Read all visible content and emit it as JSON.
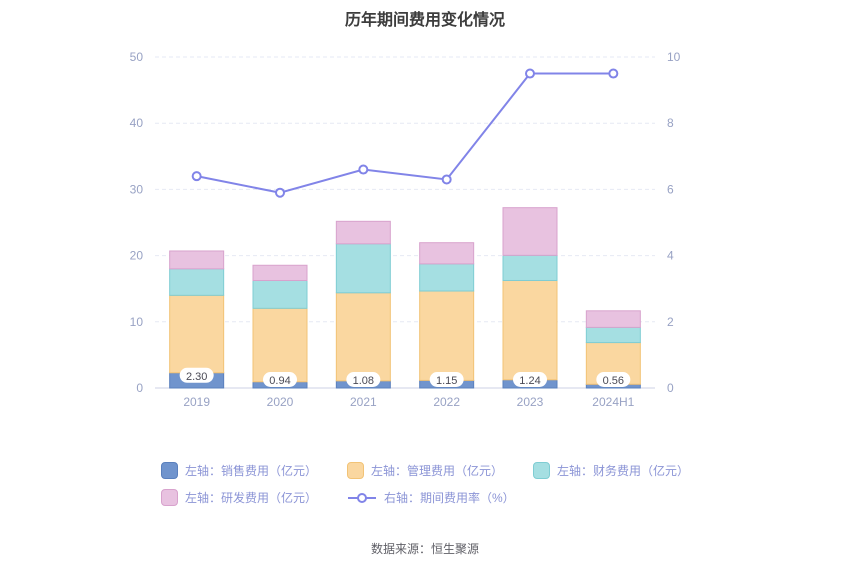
{
  "title": "历年期间费用变化情况",
  "footer": "数据来源：恒生聚源",
  "colors": {
    "title": "#3d3d3d",
    "axis_text": "#98a2c4",
    "grid": "#e6e9f4",
    "axis_line": "#ccd2e4",
    "legend_text": "#8b94d6",
    "footer_text": "#5f5f66",
    "bar_label_text": "#4a4a55",
    "bar_label_bg": "#ffffff"
  },
  "chart_data": {
    "type": "bar",
    "title": "历年期间费用变化情况",
    "categories": [
      "2019",
      "2020",
      "2021",
      "2022",
      "2023",
      "2024H1"
    ],
    "left_axis": {
      "label": "亿元",
      "min": 0,
      "max": 50,
      "ticks": [
        0,
        10,
        20,
        30,
        40,
        50
      ]
    },
    "right_axis": {
      "label": "%",
      "min": 0,
      "max": 10,
      "ticks": [
        0,
        2,
        4,
        6,
        8,
        10
      ]
    },
    "grid": true,
    "legend_position": "bottom",
    "series": [
      {
        "name": "左轴：销售费用（亿元）",
        "type": "bar",
        "axis": "left",
        "color": "#7094cd",
        "border": "#5a80bd",
        "values": [
          2.3,
          0.94,
          1.08,
          1.15,
          1.24,
          0.56
        ],
        "labels": [
          "2.30",
          "0.94",
          "1.08",
          "1.15",
          "1.24",
          "0.56"
        ]
      },
      {
        "name": "左轴：管理费用（亿元）",
        "type": "bar",
        "axis": "left",
        "color": "#fad7a0",
        "border": "#f2c376",
        "values": [
          11.7,
          11.1,
          13.3,
          13.5,
          15.0,
          6.3
        ]
      },
      {
        "name": "左轴：财务费用（亿元）",
        "type": "bar",
        "axis": "left",
        "color": "#a5dfe2",
        "border": "#7fcdd3",
        "values": [
          4.0,
          4.2,
          7.4,
          4.1,
          3.8,
          2.3
        ]
      },
      {
        "name": "左轴：研发费用（亿元）",
        "type": "bar",
        "axis": "left",
        "color": "#e8c2e0",
        "border": "#d8a2cd",
        "values": [
          2.7,
          2.3,
          3.4,
          3.2,
          7.2,
          2.5
        ]
      },
      {
        "name": "右轴：期间费用率（%）",
        "type": "line",
        "axis": "right",
        "color": "#8184e8",
        "values": [
          6.4,
          5.9,
          6.6,
          6.3,
          9.5,
          9.5
        ]
      }
    ]
  }
}
